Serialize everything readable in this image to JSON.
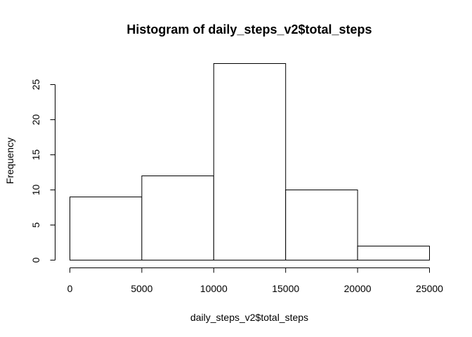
{
  "chart_data": {
    "type": "bar",
    "title": "Histogram of daily_steps_v2$total_steps",
    "xlabel": "daily_steps_v2$total_steps",
    "ylabel": "Frequency",
    "bins": [
      {
        "x_start": 0,
        "x_end": 5000,
        "count": 9
      },
      {
        "x_start": 5000,
        "x_end": 10000,
        "count": 12
      },
      {
        "x_start": 10000,
        "x_end": 15000,
        "count": 28
      },
      {
        "x_start": 15000,
        "x_end": 20000,
        "count": 10
      },
      {
        "x_start": 20000,
        "x_end": 25000,
        "count": 2
      }
    ],
    "x_ticks": [
      0,
      5000,
      10000,
      15000,
      20000,
      25000
    ],
    "x_tick_labels": [
      "0",
      "5000",
      "10000",
      "15000",
      "20000",
      "25000"
    ],
    "y_ticks": [
      0,
      5,
      10,
      15,
      20,
      25
    ],
    "y_tick_labels": [
      "0",
      "5",
      "10",
      "15",
      "20",
      "25"
    ],
    "xlim": [
      0,
      25000
    ],
    "ylim": [
      0,
      28
    ],
    "grid": false,
    "legend": "none",
    "colors": {
      "bar_fill": "#ffffff",
      "bar_stroke": "#000000"
    }
  }
}
